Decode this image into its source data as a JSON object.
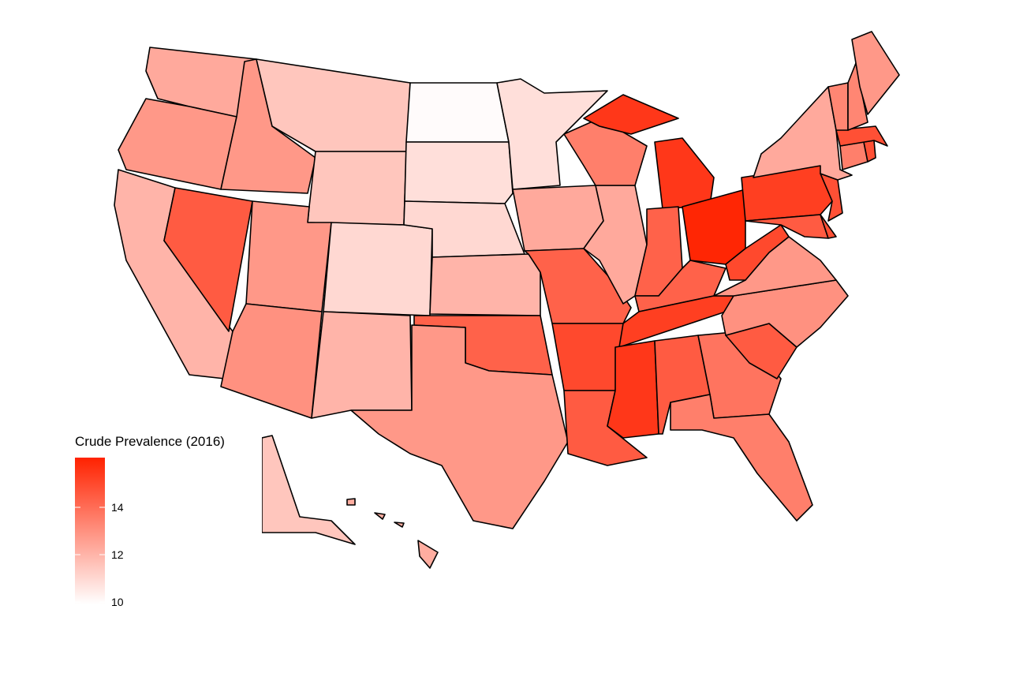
{
  "chart_data": {
    "type": "choropleth",
    "values": [
      12.3,
      12.8,
      12.0,
      14.5,
      12.8,
      11.5,
      11.5,
      12.8,
      13.0,
      11.0,
      12.0,
      10.0,
      10.8,
      11.0,
      12.0,
      14.3,
      12.8,
      10.8,
      12.3,
      14.3,
      15.0,
      14.5,
      12.3,
      13.5,
      15.5,
      14.3,
      16.0,
      14.3,
      15.3,
      15.5,
      14.5,
      13.8,
      13.5,
      14.5,
      13.0,
      12.8,
      15.0,
      15.3,
      14.5,
      14.8,
      14.8,
      12.3,
      13.5,
      14.8,
      14.8,
      13.3,
      13.3,
      12.8,
      11.5,
      12.2
    ],
    "low_color": "#ffffff",
    "high_color": "#ff2200",
    "border_color": "#000000",
    "legend": {
      "title": "Crude Prevalence (2016)",
      "lim": [
        9.9,
        16.1
      ],
      "ticks": [
        10,
        12,
        14
      ]
    }
  }
}
